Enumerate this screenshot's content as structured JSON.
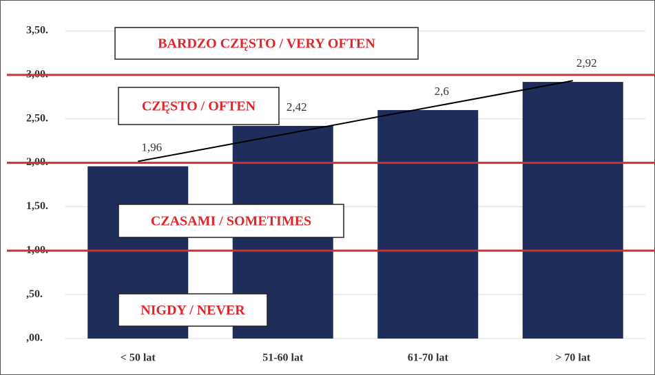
{
  "chart_data": {
    "type": "bar",
    "categories": [
      "< 50 lat",
      "51-60 lat",
      "61-70 lat",
      "> 70 lat"
    ],
    "values": [
      1.96,
      2.42,
      2.6,
      2.92
    ],
    "value_labels": [
      "1,96",
      "2,42",
      "2,6",
      "2,92"
    ],
    "color": "#1f2d5a",
    "ylim": [
      0,
      3.5
    ],
    "yticks": [
      {
        "value": 0,
        "label": ",00."
      },
      {
        "value": 0.5,
        "label": ",50."
      },
      {
        "value": 1,
        "label": "1,00."
      },
      {
        "value": 1.5,
        "label": "1,50."
      },
      {
        "value": 2,
        "label": "2,00."
      },
      {
        "value": 2.5,
        "label": "2,50."
      },
      {
        "value": 3,
        "label": "3,00."
      },
      {
        "value": 3.5,
        "label": "3,50."
      }
    ],
    "grid": true,
    "trendline": "linear",
    "trendline_color": "#000000",
    "thresholds": [
      1,
      2,
      3
    ],
    "threshold_color": "#d32f2f",
    "bands": [
      "NIGDY / NEVER",
      "CZASAMI / SOMETIMES",
      "CZĘSTO / OFTEN",
      "BARDZO CZĘSTO / VERY OFTEN"
    ]
  }
}
